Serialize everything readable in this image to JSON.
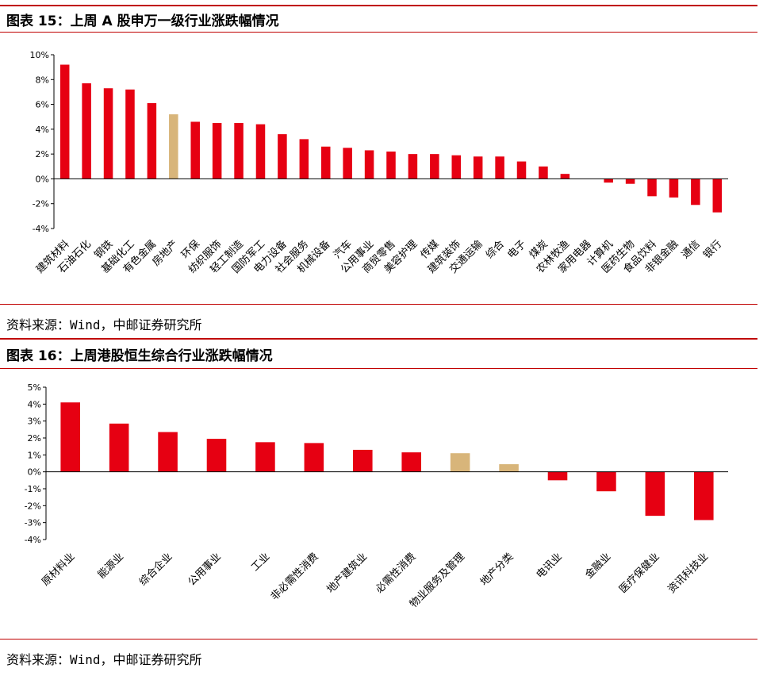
{
  "chart1": {
    "title": "图表 15：上周 A 股申万一级行业涨跌幅情况",
    "source": "资料来源：Wind，中邮证券研究所"
  },
  "chart2": {
    "title": "图表 16：上周港股恒生综合行业涨跌幅情况",
    "source": "资料来源：Wind，中邮证券研究所"
  },
  "colors": {
    "accent": "#e60012",
    "highlight": "#d8b57a",
    "rule": "#c00000"
  },
  "chart_data": [
    {
      "type": "bar",
      "categories": [
        "建筑材料",
        "石油石化",
        "钢铁",
        "基础化工",
        "有色金属",
        "房地产",
        "环保",
        "纺织服饰",
        "轻工制造",
        "国防军工",
        "电力设备",
        "社会服务",
        "机械设备",
        "汽车",
        "公用事业",
        "商贸零售",
        "美容护理",
        "传媒",
        "建筑装饰",
        "交通运输",
        "综合",
        "电子",
        "煤炭",
        "农林牧渔",
        "家用电器",
        "计算机",
        "医药生物",
        "食品饮料",
        "非银金融",
        "通信",
        "银行"
      ],
      "values": [
        9.2,
        7.7,
        7.3,
        7.2,
        6.1,
        5.2,
        4.6,
        4.5,
        4.5,
        4.4,
        3.6,
        3.2,
        2.6,
        2.5,
        2.3,
        2.2,
        2.0,
        2.0,
        1.9,
        1.8,
        1.8,
        1.4,
        1.0,
        0.4,
        0.0,
        -0.3,
        -0.4,
        -1.4,
        -1.5,
        -2.1,
        -2.7
      ],
      "highlight_index": 5,
      "ylim": [
        -4,
        10
      ],
      "yticks": [
        -4,
        -2,
        0,
        2,
        4,
        6,
        8,
        10
      ],
      "ytick_labels": [
        "-4%",
        "-2%",
        "0%",
        "2%",
        "4%",
        "6%",
        "8%",
        "10%"
      ]
    },
    {
      "type": "bar",
      "categories": [
        "原材料业",
        "能源业",
        "综合企业",
        "公用事业",
        "工业",
        "非必需性消费",
        "地产建筑业",
        "必需性消费",
        "物业服务及管理",
        "地产分类",
        "电讯业",
        "金融业",
        "医疗保健业",
        "资讯科技业"
      ],
      "values": [
        4.1,
        2.85,
        2.35,
        1.95,
        1.75,
        1.7,
        1.3,
        1.15,
        1.1,
        0.45,
        -0.5,
        -1.15,
        -2.6,
        -2.85
      ],
      "highlight_indices": [
        8,
        9
      ],
      "ylim": [
        -4,
        5
      ],
      "yticks": [
        -4,
        -3,
        -2,
        -1,
        0,
        1,
        2,
        3,
        4,
        5
      ],
      "ytick_labels": [
        "-4%",
        "-3%",
        "-2%",
        "-1%",
        "0%",
        "1%",
        "2%",
        "3%",
        "4%",
        "5%"
      ]
    }
  ]
}
